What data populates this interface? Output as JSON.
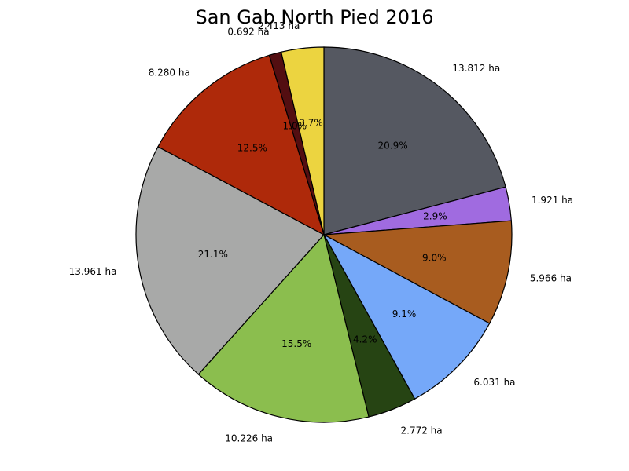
{
  "chart_data": {
    "type": "pie",
    "title": "San Gab North Pied 2016",
    "unit": "ha",
    "slices": [
      {
        "value": 13.812,
        "value_label": "13.812 ha",
        "percent_label": "20.9%",
        "color": "#555861"
      },
      {
        "value": 1.921,
        "value_label": "1.921 ha",
        "percent_label": "2.9%",
        "color": "#A06BE0"
      },
      {
        "value": 5.966,
        "value_label": "5.966 ha",
        "percent_label": "9.0%",
        "color": "#A85C1F"
      },
      {
        "value": 6.031,
        "value_label": "6.031 ha",
        "percent_label": "9.1%",
        "color": "#75A8F9"
      },
      {
        "value": 2.772,
        "value_label": "2.772 ha",
        "percent_label": "4.2%",
        "color": "#264413"
      },
      {
        "value": 10.226,
        "value_label": "10.226 ha",
        "percent_label": "15.5%",
        "color": "#8BBE4E"
      },
      {
        "value": 13.961,
        "value_label": "13.961 ha",
        "percent_label": "21.1%",
        "color": "#A8A9A8"
      },
      {
        "value": 8.28,
        "value_label": "8.280 ha",
        "percent_label": "12.5%",
        "color": "#AE290A"
      },
      {
        "value": 0.692,
        "value_label": "0.692 ha",
        "percent_label": "1.0%",
        "color": "#530E11"
      },
      {
        "value": 2.413,
        "value_label": "2.413 ha",
        "percent_label": "3.7%",
        "color": "#ECD440"
      }
    ]
  }
}
